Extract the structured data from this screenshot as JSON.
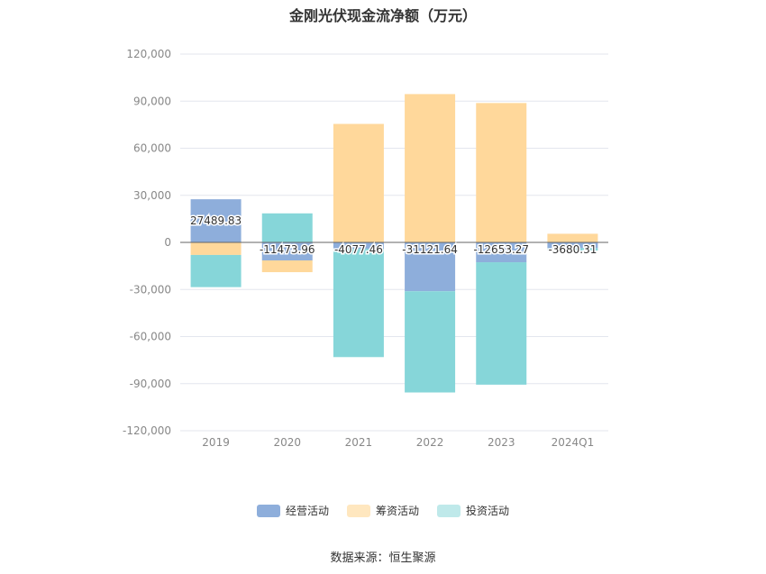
{
  "title": "金刚光伏现金流净额（万元）",
  "source": "数据来源：恒生聚源",
  "chart_data": {
    "type": "bar",
    "stacked": true,
    "categories": [
      "2019",
      "2020",
      "2021",
      "2022",
      "2023",
      "2024Q1"
    ],
    "ylim": [
      -120000,
      120000
    ],
    "yticks": [
      120000,
      90000,
      60000,
      30000,
      0,
      -30000,
      -60000,
      -90000,
      -120000
    ],
    "ytick_labels": [
      "120,000",
      "90,000",
      "60,000",
      "30,000",
      "0",
      "-30,000",
      "-60,000",
      "-90,000",
      "-120,000"
    ],
    "grid": true,
    "legend_position": "bottom",
    "series": [
      {
        "name": "经营活动",
        "color": "#8eaedb",
        "values": [
          27489.83,
          -11473.96,
          -4077.46,
          -31121.64,
          -12653.27,
          -3680.31
        ],
        "labels": [
          "27489.83",
          "-11473.96",
          "-4077.46",
          "-31121.64",
          "-12653.27",
          "-3680.31"
        ]
      },
      {
        "name": "筹资活动",
        "color": "#ffd89b",
        "values": [
          -8000,
          -7500,
          75500,
          94500,
          88800,
          5500
        ]
      },
      {
        "name": "投资活动",
        "color": "#86d6d9",
        "values": [
          -20500,
          18500,
          -69000,
          -64500,
          -78000,
          -1500
        ]
      }
    ]
  }
}
